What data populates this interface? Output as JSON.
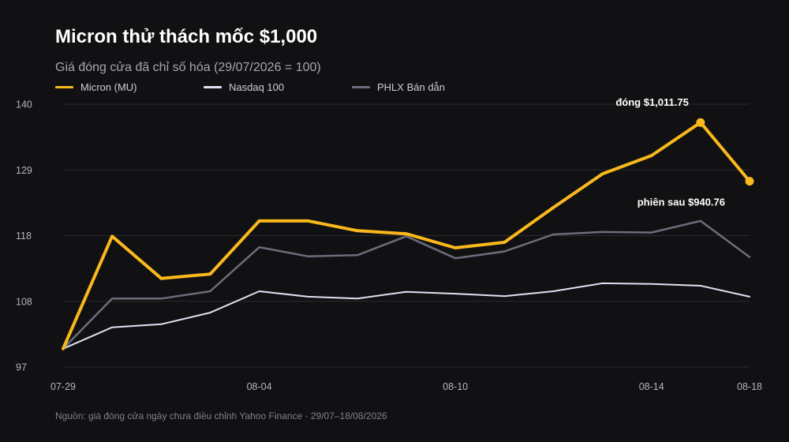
{
  "chart_data": {
    "type": "line",
    "title": "Micron thử thách mốc $1,000",
    "subtitle": "Giá đóng cửa đã chỉ số hóa (29/07/2026 = 100)",
    "x": [
      "07-29",
      "07-30",
      "07-31",
      "08-03",
      "08-04",
      "08-05",
      "08-06",
      "08-07",
      "08-10",
      "08-11",
      "08-12",
      "08-13",
      "08-14",
      "08-17",
      "08-18"
    ],
    "xticks": [
      "07-29",
      "08-04",
      "08-10",
      "08-14",
      "08-18"
    ],
    "yticks": [
      97,
      108,
      118,
      129,
      140
    ],
    "ylim": [
      97,
      140
    ],
    "grid": true,
    "legend": "top-left",
    "series": [
      {
        "name": "Micron (MU)",
        "color": "#f8b91c",
        "values": [
          100,
          118.4,
          111.5,
          112.2,
          120.9,
          120.9,
          119.3,
          118.8,
          116.5,
          117.4,
          123.1,
          128.6,
          131.6,
          137.0,
          127.4
        ]
      },
      {
        "name": "Nasdaq 100",
        "color": "#dfe1f2",
        "values": [
          100,
          103.5,
          104.0,
          105.9,
          109.4,
          108.5,
          108.2,
          109.3,
          109.0,
          108.6,
          109.4,
          110.7,
          110.6,
          110.3,
          108.5
        ]
      },
      {
        "name": "PHLX Bán dẫn",
        "color": "#6b6d7c",
        "values": [
          100,
          108.2,
          108.2,
          109.4,
          116.6,
          115.1,
          115.3,
          118.4,
          114.8,
          115.9,
          118.7,
          119.1,
          119.0,
          120.9,
          115.0
        ]
      }
    ],
    "annotations": [
      {
        "text": "đóng $1,011.75",
        "series": "Micron (MU)",
        "x": "08-17"
      },
      {
        "text": "phiên sau $940.76",
        "series": "Micron (MU)",
        "x": "08-18"
      }
    ],
    "source": "Nguồn: giá đóng cửa ngày chưa điều chỉnh Yahoo Finance · 29/07–18/08/2026"
  }
}
